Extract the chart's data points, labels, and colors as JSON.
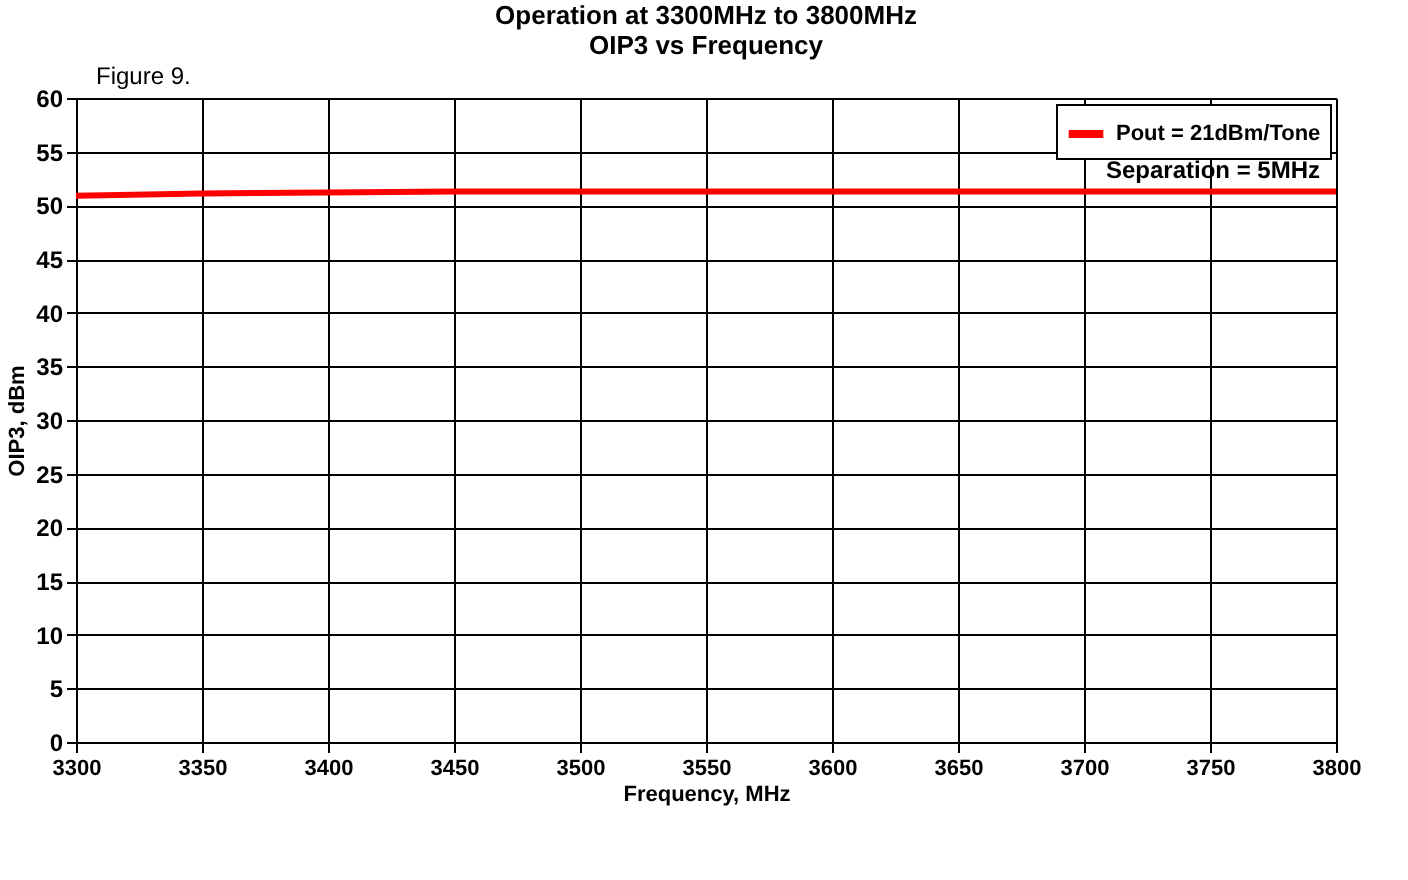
{
  "chart_data": {
    "type": "line",
    "title": [
      "Operation at 3300MHz to 3800MHz",
      "OIP3 vs Frequency"
    ],
    "xlabel": "Frequency, MHz",
    "ylabel": "OIP3, dBm",
    "annotations": [
      "Figure 9.",
      "Separation = 5MHz"
    ],
    "x": [
      3300,
      3350,
      3400,
      3450,
      3500,
      3550,
      3600,
      3650,
      3700,
      3750,
      3800
    ],
    "series": [
      {
        "name": "Pout = 21dBm/Tone",
        "color": "#ff0000",
        "values": [
          50.9,
          51.1,
          51.2,
          51.3,
          51.3,
          51.3,
          51.3,
          51.3,
          51.3,
          51.3,
          51.3
        ]
      }
    ],
    "xlim": [
      3300,
      3800
    ],
    "xticks": [
      {
        "value": 3300,
        "label": "3300"
      },
      {
        "value": 3350,
        "label": "3350"
      },
      {
        "value": 3400,
        "label": "3400"
      },
      {
        "value": 3450,
        "label": "3450"
      },
      {
        "value": 3500,
        "label": "3500"
      },
      {
        "value": 3550,
        "label": "3550"
      },
      {
        "value": 3600,
        "label": "3600"
      },
      {
        "value": 3650,
        "label": "3650"
      },
      {
        "value": 3700,
        "label": "3700"
      },
      {
        "value": 3750,
        "label": "3750"
      },
      {
        "value": 3800,
        "label": "3800"
      }
    ],
    "ylim": [
      0,
      60
    ],
    "yticks": [
      0,
      5,
      10,
      15,
      20,
      25,
      30,
      35,
      40,
      45,
      50,
      55,
      60
    ],
    "grid": true,
    "legend": "top right",
    "marker": "none",
    "line_style": "solid"
  }
}
